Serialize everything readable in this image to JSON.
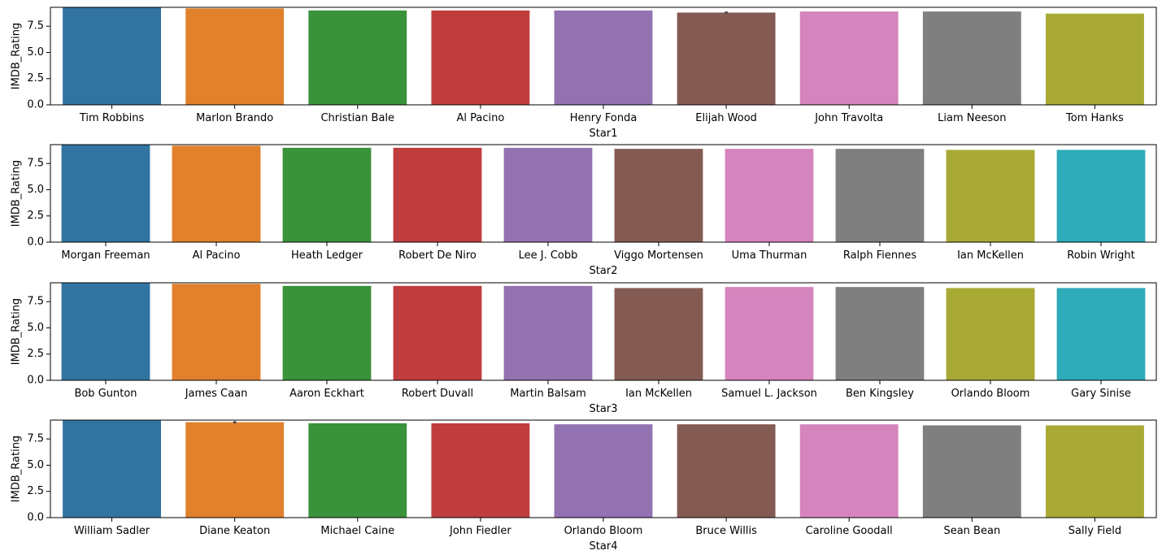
{
  "chart_data": [
    {
      "type": "bar",
      "xlabel": "Star1",
      "ylabel": "IMDB_Rating",
      "ylim": [
        0,
        9.3
      ],
      "yticks": [
        "0.0",
        "2.5",
        "5.0",
        "7.5"
      ],
      "categories": [
        "Tim Robbins",
        "Marlon Brando",
        "Christian Bale",
        "Al Pacino",
        "Henry Fonda",
        "Elijah Wood",
        "John Travolta",
        "Liam Neeson",
        "Tom Hanks"
      ],
      "values": [
        9.3,
        9.2,
        9.0,
        9.0,
        9.0,
        8.8,
        8.9,
        8.9,
        8.7
      ],
      "errors": [
        null,
        null,
        null,
        null,
        null,
        [
          8.7,
          8.9
        ],
        null,
        null,
        null
      ],
      "colors": [
        "#3274a1",
        "#e1812c",
        "#3a923a",
        "#c03d3e",
        "#9372b2",
        "#845b53",
        "#d684bd",
        "#7f7f7f",
        "#a9aa35"
      ],
      "grid": false,
      "legend": "none"
    },
    {
      "type": "bar",
      "xlabel": "Star2",
      "ylabel": "IMDB_Rating",
      "ylim": [
        0,
        9.3
      ],
      "yticks": [
        "0.0",
        "2.5",
        "5.0",
        "7.5"
      ],
      "categories": [
        "Morgan Freeman",
        "Al Pacino",
        "Heath Ledger",
        "Robert De Niro",
        "Lee J. Cobb",
        "Viggo Mortensen",
        "Uma Thurman",
        "Ralph Fiennes",
        "Ian McKellen",
        "Robin Wright"
      ],
      "values": [
        9.3,
        9.2,
        9.0,
        9.0,
        9.0,
        8.9,
        8.9,
        8.9,
        8.8,
        8.8
      ],
      "errors": [
        null,
        null,
        null,
        null,
        null,
        null,
        null,
        null,
        null,
        null
      ],
      "colors": [
        "#3274a1",
        "#e1812c",
        "#3a923a",
        "#c03d3e",
        "#9372b2",
        "#845b53",
        "#d684bd",
        "#7f7f7f",
        "#a9aa35",
        "#2eabb8"
      ],
      "grid": false,
      "legend": "none"
    },
    {
      "type": "bar",
      "xlabel": "Star3",
      "ylabel": "IMDB_Rating",
      "ylim": [
        0,
        9.3
      ],
      "yticks": [
        "0.0",
        "2.5",
        "5.0",
        "7.5"
      ],
      "categories": [
        "Bob Gunton",
        "James Caan",
        "Aaron Eckhart",
        "Robert Duvall",
        "Martin Balsam",
        "Ian McKellen",
        "Samuel L. Jackson",
        "Ben Kingsley",
        "Orlando Bloom",
        "Gary Sinise"
      ],
      "values": [
        9.3,
        9.2,
        9.0,
        9.0,
        9.0,
        8.8,
        8.9,
        8.9,
        8.8,
        8.8
      ],
      "errors": [
        null,
        null,
        null,
        null,
        null,
        null,
        null,
        null,
        null,
        null
      ],
      "colors": [
        "#3274a1",
        "#e1812c",
        "#3a923a",
        "#c03d3e",
        "#9372b2",
        "#845b53",
        "#d684bd",
        "#7f7f7f",
        "#a9aa35",
        "#2eabb8"
      ],
      "grid": false,
      "legend": "none"
    },
    {
      "type": "bar",
      "xlabel": "Star4",
      "ylabel": "IMDB_Rating",
      "ylim": [
        0,
        9.3
      ],
      "yticks": [
        "0.0",
        "2.5",
        "5.0",
        "7.5"
      ],
      "categories": [
        "William Sadler",
        "Diane Keaton",
        "Michael Caine",
        "John Fiedler",
        "Orlando Bloom",
        "Bruce Willis",
        "Caroline Goodall",
        "Sean Bean",
        "Sally Field"
      ],
      "values": [
        9.3,
        9.1,
        9.0,
        9.0,
        8.9,
        8.9,
        8.9,
        8.8,
        8.8
      ],
      "errors": [
        null,
        [
          9.0,
          9.2
        ],
        null,
        null,
        null,
        null,
        null,
        null,
        null
      ],
      "colors": [
        "#3274a1",
        "#e1812c",
        "#3a923a",
        "#c03d3e",
        "#9372b2",
        "#845b53",
        "#d684bd",
        "#7f7f7f",
        "#a9aa35"
      ],
      "grid": false,
      "legend": "none"
    }
  ]
}
